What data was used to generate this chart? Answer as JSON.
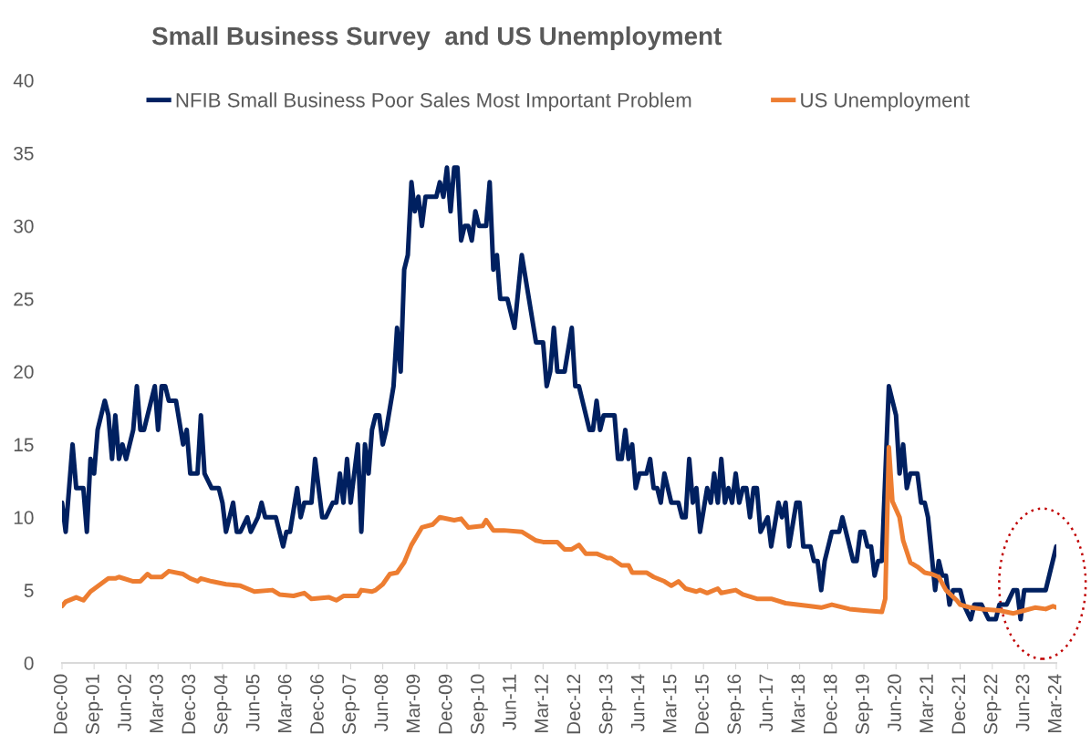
{
  "chart_data": {
    "type": "line",
    "title": "Small Business Survey  and US Unemployment",
    "xlim": [
      "2000-12",
      "2024-03"
    ],
    "xticks": [
      {
        "value": "2000-12",
        "label": "Dec-00"
      },
      {
        "value": "2001-09",
        "label": "Sep-01"
      },
      {
        "value": "2002-06",
        "label": "Jun-02"
      },
      {
        "value": "2003-03",
        "label": "Mar-03"
      },
      {
        "value": "2003-12",
        "label": "Dec-03"
      },
      {
        "value": "2004-09",
        "label": "Sep-04"
      },
      {
        "value": "2005-06",
        "label": "Jun-05"
      },
      {
        "value": "2006-03",
        "label": "Mar-06"
      },
      {
        "value": "2006-12",
        "label": "Dec-06"
      },
      {
        "value": "2007-09",
        "label": "Sep-07"
      },
      {
        "value": "2008-06",
        "label": "Jun-08"
      },
      {
        "value": "2009-03",
        "label": "Mar-09"
      },
      {
        "value": "2009-12",
        "label": "Dec-09"
      },
      {
        "value": "2010-09",
        "label": "Sep-10"
      },
      {
        "value": "2011-06",
        "label": "Jun-11"
      },
      {
        "value": "2012-03",
        "label": "Mar-12"
      },
      {
        "value": "2012-12",
        "label": "Dec-12"
      },
      {
        "value": "2013-09",
        "label": "Sep-13"
      },
      {
        "value": "2014-06",
        "label": "Jun-14"
      },
      {
        "value": "2015-03",
        "label": "Mar-15"
      },
      {
        "value": "2015-12",
        "label": "Dec-15"
      },
      {
        "value": "2016-09",
        "label": "Sep-16"
      },
      {
        "value": "2017-06",
        "label": "Jun-17"
      },
      {
        "value": "2018-03",
        "label": "Mar-18"
      },
      {
        "value": "2018-12",
        "label": "Dec-18"
      },
      {
        "value": "2019-09",
        "label": "Sep-19"
      },
      {
        "value": "2020-06",
        "label": "Jun-20"
      },
      {
        "value": "2021-03",
        "label": "Mar-21"
      },
      {
        "value": "2021-12",
        "label": "Dec-21"
      },
      {
        "value": "2022-09",
        "label": "Sep-22"
      },
      {
        "value": "2023-06",
        "label": "Jun-23"
      },
      {
        "value": "2024-03",
        "label": "Mar-24"
      }
    ],
    "ylim": [
      0,
      40
    ],
    "yticks": [
      0,
      5,
      10,
      15,
      20,
      25,
      30,
      35,
      40
    ],
    "grid": false,
    "legend": "top",
    "marker": "none",
    "line_style": "solid",
    "series": [
      {
        "name": "NFIB Small Business Poor Sales Most Important Problem",
        "color": "#002060",
        "x": [
          "2000-12",
          "2001-01",
          "2001-03",
          "2001-04",
          "2001-06",
          "2001-07",
          "2001-08",
          "2001-09",
          "2001-10",
          "2001-12",
          "2002-01",
          "2002-02",
          "2002-03",
          "2002-04",
          "2002-05",
          "2002-06",
          "2002-08",
          "2002-09",
          "2002-10",
          "2002-11",
          "2003-02",
          "2003-03",
          "2003-04",
          "2003-05",
          "2003-06",
          "2003-08",
          "2003-10",
          "2003-11",
          "2003-12",
          "2004-02",
          "2004-03",
          "2004-04",
          "2004-06",
          "2004-08",
          "2004-09",
          "2004-10",
          "2004-12",
          "2005-01",
          "2005-02",
          "2005-04",
          "2005-05",
          "2005-07",
          "2005-08",
          "2005-09",
          "2005-12",
          "2006-02",
          "2006-03",
          "2006-04",
          "2006-06",
          "2006-07",
          "2006-08",
          "2006-10",
          "2006-11",
          "2007-01",
          "2007-02",
          "2007-04",
          "2007-05",
          "2007-06",
          "2007-07",
          "2007-08",
          "2007-09",
          "2007-11",
          "2007-12",
          "2008-01",
          "2008-02",
          "2008-03",
          "2008-04",
          "2008-05",
          "2008-06",
          "2008-07",
          "2008-09",
          "2008-10",
          "2008-11",
          "2008-12",
          "2009-01",
          "2009-02",
          "2009-03",
          "2009-04",
          "2009-05",
          "2009-06",
          "2009-09",
          "2009-10",
          "2009-11",
          "2009-12",
          "2010-01",
          "2010-02",
          "2010-03",
          "2010-04",
          "2010-05",
          "2010-06",
          "2010-07",
          "2010-08",
          "2010-09",
          "2010-11",
          "2010-12",
          "2011-01",
          "2011-02",
          "2011-03",
          "2011-05",
          "2011-07",
          "2011-09",
          "2011-11",
          "2012-01",
          "2012-03",
          "2012-04",
          "2012-05",
          "2012-06",
          "2012-07",
          "2012-09",
          "2012-11",
          "2012-12",
          "2013-01",
          "2013-04",
          "2013-05",
          "2013-06",
          "2013-07",
          "2013-08",
          "2013-11",
          "2013-12",
          "2014-01",
          "2014-02",
          "2014-03",
          "2014-04",
          "2014-05",
          "2014-06",
          "2014-08",
          "2014-09",
          "2014-10",
          "2014-11",
          "2014-12",
          "2015-01",
          "2015-03",
          "2015-05",
          "2015-06",
          "2015-07",
          "2015-08",
          "2015-09",
          "2015-10",
          "2015-11",
          "2016-01",
          "2016-02",
          "2016-03",
          "2016-04",
          "2016-05",
          "2016-06",
          "2016-07",
          "2016-08",
          "2016-09",
          "2016-10",
          "2016-11",
          "2016-12",
          "2017-01",
          "2017-02",
          "2017-03",
          "2017-04",
          "2017-06",
          "2017-07",
          "2017-09",
          "2017-10",
          "2017-11",
          "2017-12",
          "2018-02",
          "2018-03",
          "2018-04",
          "2018-06",
          "2018-07",
          "2018-08",
          "2018-09",
          "2018-10",
          "2018-12",
          "2019-02",
          "2019-03",
          "2019-06",
          "2019-07",
          "2019-08",
          "2019-09",
          "2019-10",
          "2019-11",
          "2019-12",
          "2020-01",
          "2020-02",
          "2020-04",
          "2020-05",
          "2020-06",
          "2020-07",
          "2020-08",
          "2020-09",
          "2020-10",
          "2020-12",
          "2021-01",
          "2021-02",
          "2021-03",
          "2021-05",
          "2021-06",
          "2021-07",
          "2021-08",
          "2021-09",
          "2021-10",
          "2021-12",
          "2022-01",
          "2022-03",
          "2022-04",
          "2022-06",
          "2022-08",
          "2022-10",
          "2022-11",
          "2023-01",
          "2023-03",
          "2023-04",
          "2023-05",
          "2023-06",
          "2023-12",
          "2024-03"
        ],
        "values": [
          11,
          9,
          15,
          12,
          12,
          9,
          14,
          13,
          16,
          18,
          17,
          14,
          17,
          14,
          15,
          14,
          16,
          19,
          16,
          16,
          19,
          16,
          19,
          19,
          18,
          18,
          15,
          16,
          13,
          13,
          17,
          13,
          12,
          12,
          11,
          9,
          11,
          9,
          9,
          10,
          9,
          10,
          11,
          10,
          10,
          8,
          9,
          9,
          12,
          10,
          11,
          11,
          14,
          10,
          10,
          11,
          11,
          13,
          11,
          14,
          11,
          15,
          9,
          15,
          13,
          16,
          17,
          17,
          15,
          16,
          19,
          23,
          20,
          27,
          28,
          33,
          31,
          32,
          30,
          32,
          32,
          33,
          32,
          34,
          31,
          34,
          34,
          29,
          30,
          30,
          29,
          31,
          30,
          30,
          33,
          27,
          28,
          25,
          25,
          23,
          28,
          25,
          22,
          22,
          19,
          20,
          23,
          20,
          20,
          23,
          19,
          19,
          16,
          16,
          18,
          16,
          17,
          17,
          14,
          14,
          16,
          14,
          15,
          12,
          13,
          13,
          14,
          12,
          12,
          11,
          13,
          11,
          11,
          10,
          10,
          14,
          11,
          12,
          9,
          12,
          11,
          13,
          11,
          14,
          11,
          12,
          11,
          13,
          11,
          12,
          12,
          10,
          12,
          12,
          9,
          10,
          8,
          11,
          10,
          11,
          8,
          11,
          11,
          8,
          8,
          7,
          7,
          5,
          7,
          9,
          9,
          10,
          7,
          7,
          9,
          9,
          8,
          8,
          6,
          7,
          7,
          19,
          18,
          17,
          13,
          15,
          12,
          13,
          13,
          11,
          11,
          10,
          5,
          7,
          6,
          6,
          4,
          5,
          5,
          4,
          3,
          4,
          4,
          3,
          3,
          4,
          4,
          5,
          5,
          3,
          5,
          5,
          8
        ]
      },
      {
        "name": "US Unemployment",
        "color": "#ed7d31",
        "x": [
          "2000-12",
          "2001-01",
          "2001-04",
          "2001-06",
          "2001-08",
          "2002-01",
          "2002-03",
          "2002-04",
          "2002-08",
          "2002-10",
          "2002-12",
          "2003-01",
          "2003-04",
          "2003-06",
          "2003-10",
          "2003-12",
          "2004-02",
          "2004-03",
          "2004-06",
          "2004-10",
          "2005-02",
          "2005-06",
          "2005-11",
          "2006-01",
          "2006-05",
          "2006-08",
          "2006-10",
          "2007-03",
          "2007-05",
          "2007-07",
          "2007-11",
          "2007-12",
          "2008-03",
          "2008-04",
          "2008-06",
          "2008-08",
          "2008-10",
          "2008-12",
          "2009-02",
          "2009-05",
          "2009-08",
          "2009-10",
          "2010-02",
          "2010-04",
          "2010-06",
          "2010-10",
          "2010-11",
          "2011-01",
          "2011-04",
          "2011-09",
          "2012-01",
          "2012-03",
          "2012-07",
          "2012-09",
          "2012-11",
          "2013-01",
          "2013-03",
          "2013-06",
          "2013-09",
          "2013-10",
          "2014-01",
          "2014-03",
          "2014-04",
          "2014-08",
          "2014-10",
          "2015-01",
          "2015-03",
          "2015-05",
          "2015-07",
          "2015-10",
          "2015-11",
          "2016-01",
          "2016-04",
          "2016-05",
          "2016-09",
          "2016-11",
          "2017-03",
          "2017-07",
          "2017-11",
          "2018-06",
          "2018-09",
          "2018-12",
          "2019-05",
          "2019-09",
          "2020-02",
          "2020-03",
          "2020-04",
          "2020-05",
          "2020-07",
          "2020-08",
          "2020-10",
          "2020-12",
          "2021-02",
          "2021-04",
          "2021-06",
          "2021-08",
          "2021-11",
          "2021-12",
          "2022-03",
          "2022-06",
          "2022-11",
          "2023-03",
          "2023-06",
          "2023-09",
          "2023-12",
          "2024-02",
          "2024-03"
        ],
        "values": [
          3.9,
          4.2,
          4.5,
          4.3,
          4.9,
          5.8,
          5.8,
          5.9,
          5.6,
          5.6,
          6.1,
          5.9,
          5.9,
          6.3,
          6.1,
          5.8,
          5.6,
          5.8,
          5.6,
          5.4,
          5.3,
          4.9,
          5.0,
          4.7,
          4.6,
          4.8,
          4.4,
          4.5,
          4.3,
          4.6,
          4.6,
          5.0,
          4.9,
          5.0,
          5.4,
          6.1,
          6.2,
          6.9,
          8.1,
          9.3,
          9.5,
          10.0,
          9.8,
          9.9,
          9.3,
          9.4,
          9.8,
          9.1,
          9.1,
          9.0,
          8.4,
          8.3,
          8.3,
          7.8,
          7.8,
          8.1,
          7.5,
          7.5,
          7.2,
          7.2,
          6.7,
          6.7,
          6.2,
          6.2,
          5.9,
          5.6,
          5.3,
          5.6,
          5.1,
          4.9,
          5.0,
          4.8,
          5.1,
          4.8,
          5.0,
          4.7,
          4.4,
          4.4,
          4.1,
          3.9,
          3.8,
          4.0,
          3.7,
          3.6,
          3.5,
          4.4,
          14.8,
          11.1,
          10.0,
          8.4,
          6.9,
          6.6,
          6.2,
          6.1,
          5.9,
          5.0,
          4.3,
          4.0,
          3.8,
          3.7,
          3.6,
          3.4,
          3.6,
          3.8,
          3.7,
          3.9,
          3.8
        ]
      }
    ]
  }
}
